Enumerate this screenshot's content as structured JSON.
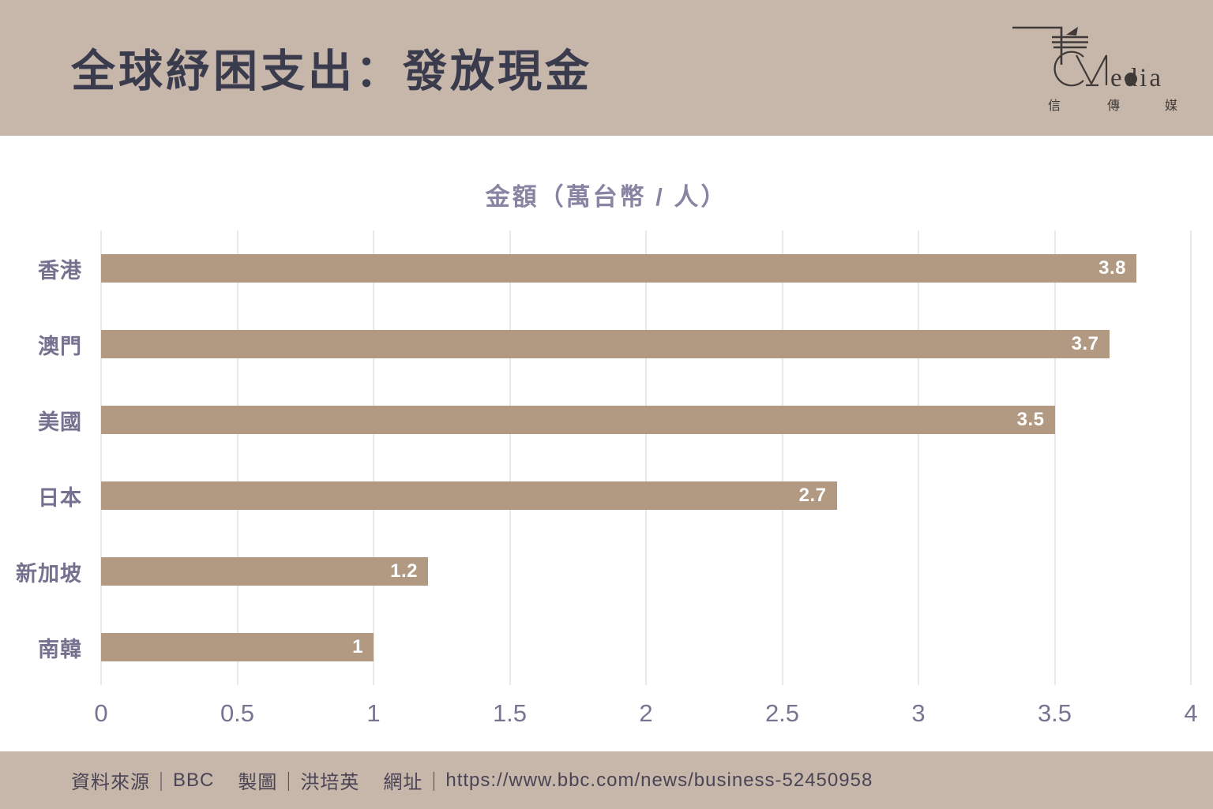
{
  "header": {
    "title": "全球紓困支出：發放現金",
    "logo": {
      "brand_suffix": "edia",
      "brand_chinese_1": "信",
      "brand_chinese_2": "傳",
      "brand_chinese_3": "媒"
    }
  },
  "chart_data": {
    "type": "bar",
    "orientation": "horizontal",
    "title": "金額（萬台幣 / 人）",
    "categories": [
      "香港",
      "澳門",
      "美國",
      "日本",
      "新加坡",
      "南韓"
    ],
    "values": [
      3.8,
      3.7,
      3.5,
      2.7,
      1.2,
      1
    ],
    "value_labels": [
      "3.8",
      "3.7",
      "3.5",
      "2.7",
      "1.2",
      "1"
    ],
    "xlim": [
      0,
      4
    ],
    "x_ticks": [
      0,
      0.5,
      1,
      1.5,
      2,
      2.5,
      3,
      3.5,
      4
    ],
    "x_tick_labels": [
      "0",
      "0.5",
      "1",
      "1.5",
      "2",
      "2.5",
      "3",
      "3.5",
      "4"
    ],
    "grid": "vertical",
    "legend": "none",
    "bar_color": "#b29981",
    "value_label_color": "#ffffff",
    "category_label_color": "#76718e",
    "tick_label_color": "#7a7490",
    "gridline_color": "#e9e8ee"
  },
  "footer": {
    "separator": "｜",
    "segments": [
      {
        "label": "資料來源",
        "value": "BBC"
      },
      {
        "label": "製圖",
        "value": "洪培英"
      },
      {
        "label": "網址",
        "value": "https://www.bbc.com/news/business-52450958"
      }
    ]
  },
  "colors": {
    "band_background": "#c6b7aa",
    "title_text": "#3b3b4e",
    "plot_background": "#ffffff"
  }
}
